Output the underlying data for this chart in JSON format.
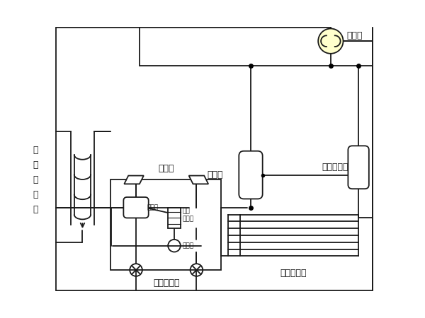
{
  "bg_color": "#ffffff",
  "line_color": "#1a1a1a",
  "fig_width": 6.0,
  "fig_height": 4.5,
  "dpi": 100,
  "labels": {
    "water_heat_exchanger": "水\n侧\n换\n热\n器",
    "four_way_valve": "四通阀",
    "gas_liquid_separator": "气液分离器",
    "compressor": "压缩机",
    "air_heat_exchanger": "风侧换热器",
    "check_valve": "单向阀",
    "thermal_expansion_valve": "热力膨胀阀",
    "liquid_receiver": "储液罐",
    "dry_filter": "干燥\n过滤器",
    "sight_glass": "视液镜"
  }
}
